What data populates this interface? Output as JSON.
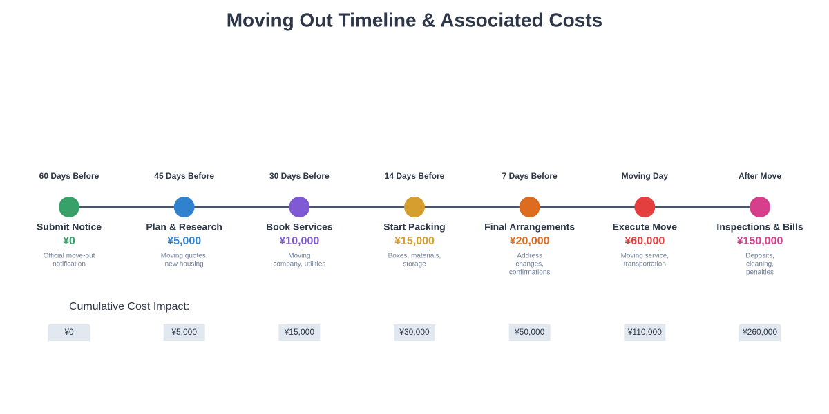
{
  "title": "Moving Out Timeline & Associated Costs",
  "cumulative_heading": "Cumulative Cost Impact:",
  "milestones": [
    {
      "timing": "60 Days Before",
      "name": "Submit Notice",
      "cost": "¥0",
      "description": [
        "Official move-out",
        "notification"
      ],
      "color": "#38a169",
      "cumulative": "¥0"
    },
    {
      "timing": "45 Days Before",
      "name": "Plan & Research",
      "cost": "¥5,000",
      "description": [
        "Moving quotes,",
        "new housing"
      ],
      "color": "#3182ce",
      "cumulative": "¥5,000"
    },
    {
      "timing": "30 Days Before",
      "name": "Book Services",
      "cost": "¥10,000",
      "description": [
        "Moving",
        "company, utilities"
      ],
      "color": "#805ad5",
      "cumulative": "¥15,000"
    },
    {
      "timing": "14 Days Before",
      "name": "Start Packing",
      "cost": "¥15,000",
      "description": [
        "Boxes, materials,",
        "storage"
      ],
      "color": "#d69e2e",
      "cumulative": "¥30,000"
    },
    {
      "timing": "7 Days Before",
      "name": "Final Arrangements",
      "cost": "¥20,000",
      "description": [
        "Address",
        "changes,",
        "confirmations"
      ],
      "color": "#dd6b20",
      "cumulative": "¥50,000"
    },
    {
      "timing": "Moving Day",
      "name": "Execute Move",
      "cost": "¥60,000",
      "description": [
        "Moving service,",
        "transportation"
      ],
      "color": "#e53e3e",
      "cumulative": "¥110,000"
    },
    {
      "timing": "After Move",
      "name": "Inspections & Bills",
      "cost": "¥150,000",
      "description": [
        "Deposits,",
        "cleaning,",
        "penalties"
      ],
      "color": "#d53f8c",
      "cumulative": "¥260,000"
    }
  ]
}
